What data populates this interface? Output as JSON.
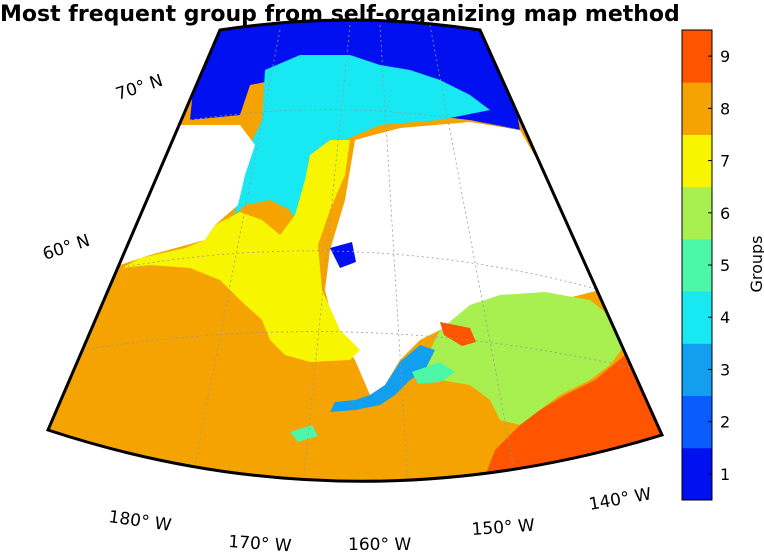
{
  "title": "Most frequent group from self-organizing map method",
  "map": {
    "lat_labels": [
      "70° N",
      "60° N"
    ],
    "lon_labels": [
      "180° W",
      "170° W",
      "160° W",
      "150° W",
      "140° W"
    ]
  },
  "colorbar": {
    "label": "Groups",
    "ticks": [
      "1",
      "2",
      "3",
      "4",
      "5",
      "6",
      "7",
      "8",
      "9"
    ],
    "colors": [
      "#0010f0",
      "#0a5cff",
      "#129ff0",
      "#18e8f2",
      "#4cf7a8",
      "#a7f04f",
      "#f7f500",
      "#f5a300",
      "#ff5500"
    ]
  },
  "legend_colors": {
    "land": "#ffffff",
    "group_1": "#0010f0",
    "group_3": "#129ff0",
    "group_4": "#18e8f2",
    "group_5": "#4cf7a8",
    "group_6": "#a7f04f",
    "group_7": "#f7f500",
    "group_8": "#f5a300",
    "group_9": "#ff5500"
  }
}
